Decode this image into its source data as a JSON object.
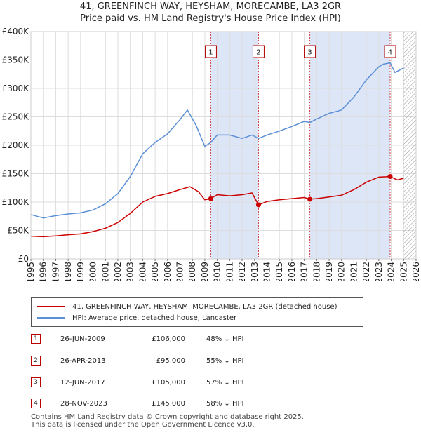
{
  "title_line1": "41, GREENFINCH WAY, HEYSHAM, MORECAMBE, LA3 2GR",
  "title_line2": "Price paid vs. HM Land Registry's House Price Index (HPI)",
  "chart_data": {
    "type": "line",
    "xlim": [
      1995,
      2026
    ],
    "ylim": [
      0,
      400000
    ],
    "y_ticks": [
      0,
      50000,
      100000,
      150000,
      200000,
      250000,
      300000,
      350000,
      400000
    ],
    "y_tick_labels": [
      "£0",
      "£50K",
      "£100K",
      "£150K",
      "£200K",
      "£250K",
      "£300K",
      "£350K",
      "£400K"
    ],
    "x_ticks": [
      1995,
      1996,
      1997,
      1998,
      1999,
      2000,
      2001,
      2002,
      2003,
      2004,
      2005,
      2006,
      2007,
      2008,
      2009,
      2010,
      2011,
      2012,
      2013,
      2014,
      2015,
      2016,
      2017,
      2018,
      2019,
      2020,
      2021,
      2022,
      2023,
      2024,
      2025,
      2026
    ],
    "shaded_periods": [
      [
        2009.48,
        2013.32
      ],
      [
        2017.45,
        2023.91
      ]
    ],
    "future_hatch_from": 2025.0,
    "colors": {
      "property": "#cc0000",
      "hpi": "#5b8fd6",
      "shade": "#dde6f7"
    },
    "series": [
      {
        "name": "41, GREENFINCH WAY, HEYSHAM, MORECAMBE, LA3 2GR (detached house)",
        "key": "property",
        "points": [
          [
            1995,
            40000
          ],
          [
            1996,
            39000
          ],
          [
            1997,
            40500
          ],
          [
            1998,
            42500
          ],
          [
            1999,
            44000
          ],
          [
            2000,
            48000
          ],
          [
            2001,
            54000
          ],
          [
            2002,
            64000
          ],
          [
            2003,
            80000
          ],
          [
            2004,
            100000
          ],
          [
            2005,
            110000
          ],
          [
            2006,
            115000
          ],
          [
            2007,
            122000
          ],
          [
            2007.8,
            127000
          ],
          [
            2008.5,
            118000
          ],
          [
            2009,
            104000
          ],
          [
            2009.48,
            106000
          ],
          [
            2010,
            113000
          ],
          [
            2011,
            111000
          ],
          [
            2012,
            113000
          ],
          [
            2012.8,
            116000
          ],
          [
            2013.32,
            95000
          ],
          [
            2014,
            101000
          ],
          [
            2015,
            104000
          ],
          [
            2016,
            106000
          ],
          [
            2017,
            108000
          ],
          [
            2017.45,
            105000
          ],
          [
            2018,
            106000
          ],
          [
            2019,
            109000
          ],
          [
            2020,
            112000
          ],
          [
            2021,
            122000
          ],
          [
            2022,
            135000
          ],
          [
            2023,
            144000
          ],
          [
            2023.91,
            145000
          ],
          [
            2024.5,
            139000
          ],
          [
            2025,
            142000
          ]
        ]
      },
      {
        "name": "HPI: Average price, detached house, Lancaster",
        "key": "hpi",
        "points": [
          [
            1995,
            78000
          ],
          [
            1996,
            72000
          ],
          [
            1997,
            76000
          ],
          [
            1998,
            79000
          ],
          [
            1999,
            81000
          ],
          [
            2000,
            86000
          ],
          [
            2001,
            97000
          ],
          [
            2002,
            115000
          ],
          [
            2003,
            145000
          ],
          [
            2004,
            185000
          ],
          [
            2005,
            205000
          ],
          [
            2006,
            220000
          ],
          [
            2007,
            245000
          ],
          [
            2007.6,
            262000
          ],
          [
            2008.3,
            235000
          ],
          [
            2009,
            198000
          ],
          [
            2009.48,
            205000
          ],
          [
            2010,
            218000
          ],
          [
            2011,
            218000
          ],
          [
            2012,
            212000
          ],
          [
            2012.8,
            218000
          ],
          [
            2013.32,
            212000
          ],
          [
            2014,
            218000
          ],
          [
            2015,
            225000
          ],
          [
            2016,
            233000
          ],
          [
            2017,
            242000
          ],
          [
            2017.45,
            240000
          ],
          [
            2018,
            246000
          ],
          [
            2019,
            256000
          ],
          [
            2020,
            262000
          ],
          [
            2021,
            285000
          ],
          [
            2022,
            315000
          ],
          [
            2023,
            338000
          ],
          [
            2023.4,
            343000
          ],
          [
            2023.91,
            345000
          ],
          [
            2024.3,
            328000
          ],
          [
            2025,
            336000
          ]
        ]
      }
    ],
    "transactions": [
      {
        "label": "1",
        "date": "26-JUN-2009",
        "x": 2009.48,
        "price": 106000,
        "price_text": "£106,000",
        "hpi_text": "48% ↓ HPI"
      },
      {
        "label": "2",
        "date": "26-APR-2013",
        "x": 2013.32,
        "price": 95000,
        "price_text": "£95,000",
        "hpi_text": "55% ↓ HPI"
      },
      {
        "label": "3",
        "date": "12-JUN-2017",
        "x": 2017.45,
        "price": 105000,
        "price_text": "£105,000",
        "hpi_text": "57% ↓ HPI"
      },
      {
        "label": "4",
        "date": "28-NOV-2023",
        "x": 2023.91,
        "price": 145000,
        "price_text": "£145,000",
        "hpi_text": "58% ↓ HPI"
      }
    ]
  },
  "legend": {
    "property_label": "41, GREENFINCH WAY, HEYSHAM, MORECAMBE, LA3 2GR (detached house)",
    "hpi_label": "HPI: Average price, detached house, Lancaster"
  },
  "footer_line1": "Contains HM Land Registry data © Crown copyright and database right 2025.",
  "footer_line2": "This data is licensed under the Open Government Licence v3.0."
}
